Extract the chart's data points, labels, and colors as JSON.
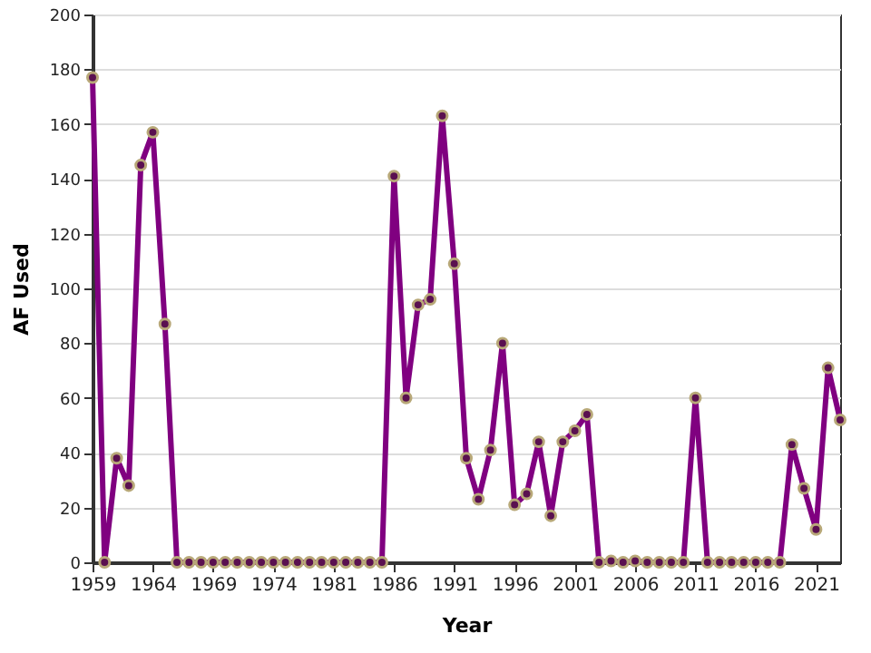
{
  "chart_data": {
    "type": "line",
    "xlabel": "Year",
    "ylabel": "AF Used",
    "categories": [
      "1959",
      null,
      null,
      null,
      null,
      "1964",
      null,
      null,
      null,
      null,
      "1969",
      null,
      null,
      null,
      null,
      "1974",
      null,
      null,
      null,
      null,
      "1981",
      null,
      null,
      null,
      null,
      "1986",
      null,
      null,
      null,
      null,
      "1991",
      null,
      null,
      null,
      null,
      "1996",
      null,
      null,
      null,
      null,
      "2001",
      null,
      null,
      null,
      null,
      "2006",
      null,
      null,
      null,
      null,
      "2011",
      null,
      null,
      null,
      null,
      "2016",
      null,
      null,
      null,
      null,
      "2021",
      null,
      null
    ],
    "series": [
      {
        "color": "#800080",
        "values": [
          177,
          0,
          38,
          28,
          145,
          157,
          87,
          0,
          0,
          0,
          0,
          0,
          0,
          0,
          0,
          0,
          0,
          0,
          0,
          0,
          0,
          0,
          0,
          0,
          0,
          141,
          60,
          94,
          96,
          163,
          109,
          38,
          23,
          41,
          80,
          21,
          25,
          44,
          17,
          44,
          48,
          54,
          0,
          0.5,
          0,
          0.5,
          0,
          0,
          0,
          0,
          60,
          0,
          0,
          0,
          0,
          0,
          0,
          0,
          43,
          27,
          12,
          71,
          52
        ]
      }
    ],
    "ylim": [
      0,
      200
    ],
    "yticks": [
      0,
      20,
      40,
      60,
      80,
      100,
      120,
      140,
      160,
      180,
      200
    ],
    "grid": "y",
    "marker": "circle",
    "line_style": "solid"
  }
}
